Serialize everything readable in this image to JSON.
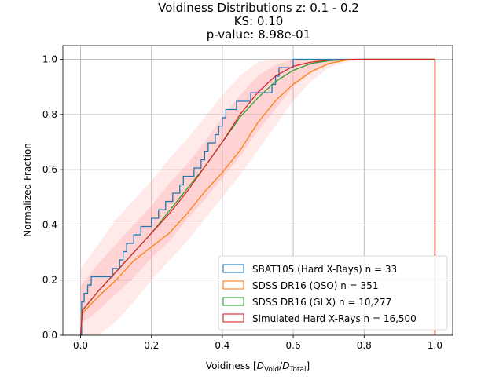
{
  "chart_data": {
    "type": "line",
    "title_lines": [
      "Voidiness Distributions z: 0.1 - 0.2",
      "KS: 0.10",
      "p-value: 8.98e-01"
    ],
    "xlabel": {
      "prefix": "Voidiness [",
      "num_main": "D",
      "num_sub": "Void",
      "slash": "/",
      "den_main": "D",
      "den_sub": "Total",
      "suffix": "]"
    },
    "ylabel": "Normalized Fraction",
    "xlim": [
      -0.05,
      1.05
    ],
    "ylim": [
      0.0,
      1.05
    ],
    "xticks": [
      0.0,
      0.2,
      0.4,
      0.6,
      0.8,
      1.0
    ],
    "yticks": [
      0.0,
      0.2,
      0.4,
      0.6,
      0.8,
      1.0
    ],
    "xtick_labels": [
      "0.0",
      "0.2",
      "0.4",
      "0.6",
      "0.8",
      "1.0"
    ],
    "ytick_labels": [
      "0.0",
      "0.2",
      "0.4",
      "0.6",
      "0.8",
      "1.0"
    ],
    "grid": true,
    "legend_position": "lower-right",
    "band": {
      "color": "#ff9999",
      "x": [
        0.0,
        0.05,
        0.1,
        0.15,
        0.2,
        0.25,
        0.3,
        0.35,
        0.4,
        0.45,
        0.5,
        0.55,
        0.6,
        0.65,
        0.7,
        0.75,
        0.8
      ],
      "outer_lower": [
        0.0,
        0.0,
        0.05,
        0.12,
        0.2,
        0.27,
        0.34,
        0.42,
        0.5,
        0.58,
        0.67,
        0.76,
        0.85,
        0.92,
        0.97,
        0.99,
        1.0
      ],
      "outer_upper": [
        0.24,
        0.33,
        0.42,
        0.49,
        0.56,
        0.64,
        0.71,
        0.79,
        0.87,
        0.94,
        0.99,
        1.0,
        1.0,
        1.0,
        1.0,
        1.0,
        1.0
      ],
      "inner_lower": [
        0.04,
        0.09,
        0.15,
        0.21,
        0.28,
        0.34,
        0.42,
        0.49,
        0.57,
        0.65,
        0.74,
        0.82,
        0.9,
        0.95,
        0.98,
        1.0,
        1.0
      ],
      "inner_upper": [
        0.18,
        0.26,
        0.33,
        0.4,
        0.47,
        0.55,
        0.62,
        0.7,
        0.79,
        0.87,
        0.94,
        0.98,
        1.0,
        1.0,
        1.0,
        1.0,
        1.0
      ]
    },
    "series": [
      {
        "name": "SBAT105 (Hard X-Rays) n = 33",
        "color": "#1f77b4",
        "kind": "step",
        "x": [
          0.0,
          0.003,
          0.01,
          0.02,
          0.03,
          0.07,
          0.09,
          0.11,
          0.12,
          0.13,
          0.15,
          0.17,
          0.2,
          0.22,
          0.24,
          0.26,
          0.28,
          0.29,
          0.3,
          0.32,
          0.34,
          0.35,
          0.36,
          0.38,
          0.39,
          0.4,
          0.41,
          0.42,
          0.44,
          0.46,
          0.48,
          0.52,
          0.54,
          0.55,
          0.56,
          0.58,
          0.6,
          1.0
        ],
        "y": [
          0.0,
          0.121,
          0.152,
          0.182,
          0.212,
          0.212,
          0.242,
          0.273,
          0.303,
          0.333,
          0.364,
          0.394,
          0.424,
          0.455,
          0.485,
          0.515,
          0.545,
          0.576,
          0.576,
          0.606,
          0.636,
          0.667,
          0.697,
          0.727,
          0.758,
          0.788,
          0.818,
          0.818,
          0.848,
          0.848,
          0.879,
          0.879,
          0.909,
          0.939,
          0.97,
          0.97,
          1.0,
          1.0
        ]
      },
      {
        "name": "SDSS DR16 (QSO) n = 351",
        "color": "#ff7f0e",
        "kind": "line",
        "x": [
          0.0,
          0.005,
          0.05,
          0.1,
          0.15,
          0.2,
          0.25,
          0.3,
          0.35,
          0.4,
          0.45,
          0.5,
          0.55,
          0.6,
          0.65,
          0.7,
          0.75,
          0.8,
          1.0
        ],
        "y": [
          0.0,
          0.08,
          0.14,
          0.2,
          0.27,
          0.32,
          0.37,
          0.44,
          0.52,
          0.59,
          0.67,
          0.77,
          0.85,
          0.91,
          0.955,
          0.985,
          0.997,
          1.0,
          1.0
        ]
      },
      {
        "name": "SDSS DR16 (GLX) n = 10,277",
        "color": "#2ca02c",
        "kind": "line",
        "x": [
          0.0,
          0.005,
          0.05,
          0.1,
          0.15,
          0.2,
          0.25,
          0.3,
          0.35,
          0.4,
          0.45,
          0.5,
          0.55,
          0.6,
          0.65,
          0.7,
          0.75,
          0.8,
          1.0
        ],
        "y": [
          0.0,
          0.09,
          0.16,
          0.23,
          0.3,
          0.37,
          0.45,
          0.53,
          0.61,
          0.7,
          0.79,
          0.86,
          0.92,
          0.96,
          0.985,
          0.995,
          0.999,
          1.0,
          1.0
        ]
      },
      {
        "name": "Simulated Hard X-Rays n = 16,500",
        "color": "#d62728",
        "kind": "line",
        "x": [
          0.0,
          0.005,
          0.05,
          0.1,
          0.15,
          0.2,
          0.25,
          0.3,
          0.35,
          0.4,
          0.45,
          0.5,
          0.55,
          0.6,
          0.65,
          0.7,
          0.75,
          0.78,
          1.0
        ],
        "y": [
          0.0,
          0.09,
          0.16,
          0.23,
          0.3,
          0.37,
          0.44,
          0.52,
          0.61,
          0.7,
          0.8,
          0.88,
          0.94,
          0.975,
          0.99,
          0.997,
          0.999,
          1.0,
          1.0
        ]
      }
    ]
  }
}
